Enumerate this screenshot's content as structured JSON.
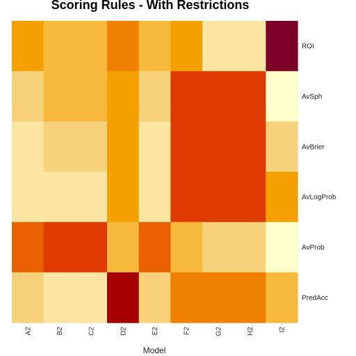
{
  "chart_data": {
    "type": "heatmap",
    "title": "Scoring Rules - With Restrictions",
    "xlabel": "Model",
    "ylabel": "",
    "x": [
      "A2",
      "B2",
      "C2",
      "D2",
      "E2",
      "F2",
      "G2",
      "H2",
      "I2"
    ],
    "y": [
      "ROI",
      "AvSph",
      "AvBrier",
      "AvLogProb",
      "AvProb",
      "PredAcc"
    ],
    "color_levels": [
      "#FFFFCC",
      "#FBE5A0",
      "#F7D27A",
      "#F6B93C",
      "#F4A000",
      "#F08000",
      "#E86000",
      "#DF3B00",
      "#A50000",
      "#7C0025"
    ],
    "levels": [
      [
        4,
        3,
        3,
        5,
        3,
        4,
        1,
        1,
        9
      ],
      [
        2,
        3,
        3,
        4,
        2,
        7,
        7,
        7,
        0
      ],
      [
        1,
        2,
        2,
        4,
        1,
        7,
        7,
        7,
        2
      ],
      [
        1,
        1,
        1,
        4,
        1,
        7,
        7,
        7,
        4
      ],
      [
        6,
        7,
        7,
        3,
        6,
        3,
        2,
        2,
        0
      ],
      [
        2,
        1,
        1,
        8,
        2,
        5,
        5,
        5,
        3
      ]
    ]
  }
}
